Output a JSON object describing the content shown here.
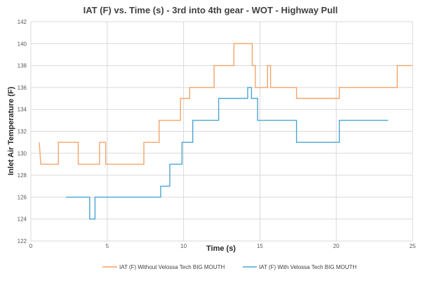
{
  "chart_data": {
    "type": "line",
    "title": "IAT (F) vs. Time (s) - 3rd into 4th gear - WOT - Highway Pull",
    "xlabel": "Time (s)",
    "ylabel": "Inlet Air Temperature (F)",
    "xlim": [
      0,
      25
    ],
    "ylim": [
      122,
      142
    ],
    "xticks": [
      0,
      5,
      10,
      15,
      20,
      25
    ],
    "yticks": [
      122,
      124,
      126,
      128,
      130,
      132,
      134,
      136,
      138,
      140,
      142
    ],
    "grid": true,
    "legend_position": "bottom",
    "series": [
      {
        "name": "IAT (F) Without Velossa Tech BIG MOUTH",
        "color": "#f4a46a",
        "step": true,
        "points": [
          [
            0.55,
            131
          ],
          [
            0.65,
            129
          ],
          [
            1.8,
            129
          ],
          [
            1.8,
            131
          ],
          [
            3.1,
            131
          ],
          [
            3.1,
            129
          ],
          [
            4.5,
            129
          ],
          [
            4.5,
            131
          ],
          [
            4.9,
            131
          ],
          [
            4.9,
            129
          ],
          [
            7.4,
            129
          ],
          [
            7.4,
            131
          ],
          [
            8.4,
            131
          ],
          [
            8.4,
            133
          ],
          [
            9.8,
            133
          ],
          [
            9.8,
            135
          ],
          [
            10.4,
            135
          ],
          [
            10.4,
            136
          ],
          [
            12.0,
            136
          ],
          [
            12.0,
            138
          ],
          [
            13.3,
            138
          ],
          [
            13.3,
            140
          ],
          [
            14.5,
            140
          ],
          [
            14.5,
            138
          ],
          [
            14.7,
            138
          ],
          [
            14.7,
            136
          ],
          [
            15.5,
            136
          ],
          [
            15.5,
            138
          ],
          [
            15.7,
            138
          ],
          [
            15.7,
            136
          ],
          [
            17.4,
            136
          ],
          [
            17.4,
            135
          ],
          [
            20.2,
            135
          ],
          [
            20.2,
            136
          ],
          [
            24.0,
            136
          ],
          [
            24.0,
            138
          ],
          [
            25.0,
            138
          ]
        ]
      },
      {
        "name": "IAT (F) With Velossa Tech BIG MOUTH",
        "color": "#4aa6d2",
        "step": true,
        "points": [
          [
            2.3,
            126
          ],
          [
            3.85,
            126
          ],
          [
            3.85,
            124
          ],
          [
            4.2,
            124
          ],
          [
            4.2,
            126
          ],
          [
            8.5,
            126
          ],
          [
            8.5,
            127
          ],
          [
            9.1,
            127
          ],
          [
            9.1,
            129
          ],
          [
            9.9,
            129
          ],
          [
            9.9,
            131
          ],
          [
            10.6,
            131
          ],
          [
            10.6,
            133
          ],
          [
            12.3,
            133
          ],
          [
            12.3,
            135
          ],
          [
            14.2,
            135
          ],
          [
            14.2,
            136
          ],
          [
            14.45,
            136
          ],
          [
            14.45,
            135
          ],
          [
            14.85,
            135
          ],
          [
            14.85,
            133
          ],
          [
            17.4,
            133
          ],
          [
            17.4,
            131
          ],
          [
            20.2,
            131
          ],
          [
            20.2,
            133
          ],
          [
            23.4,
            133
          ]
        ]
      }
    ]
  }
}
